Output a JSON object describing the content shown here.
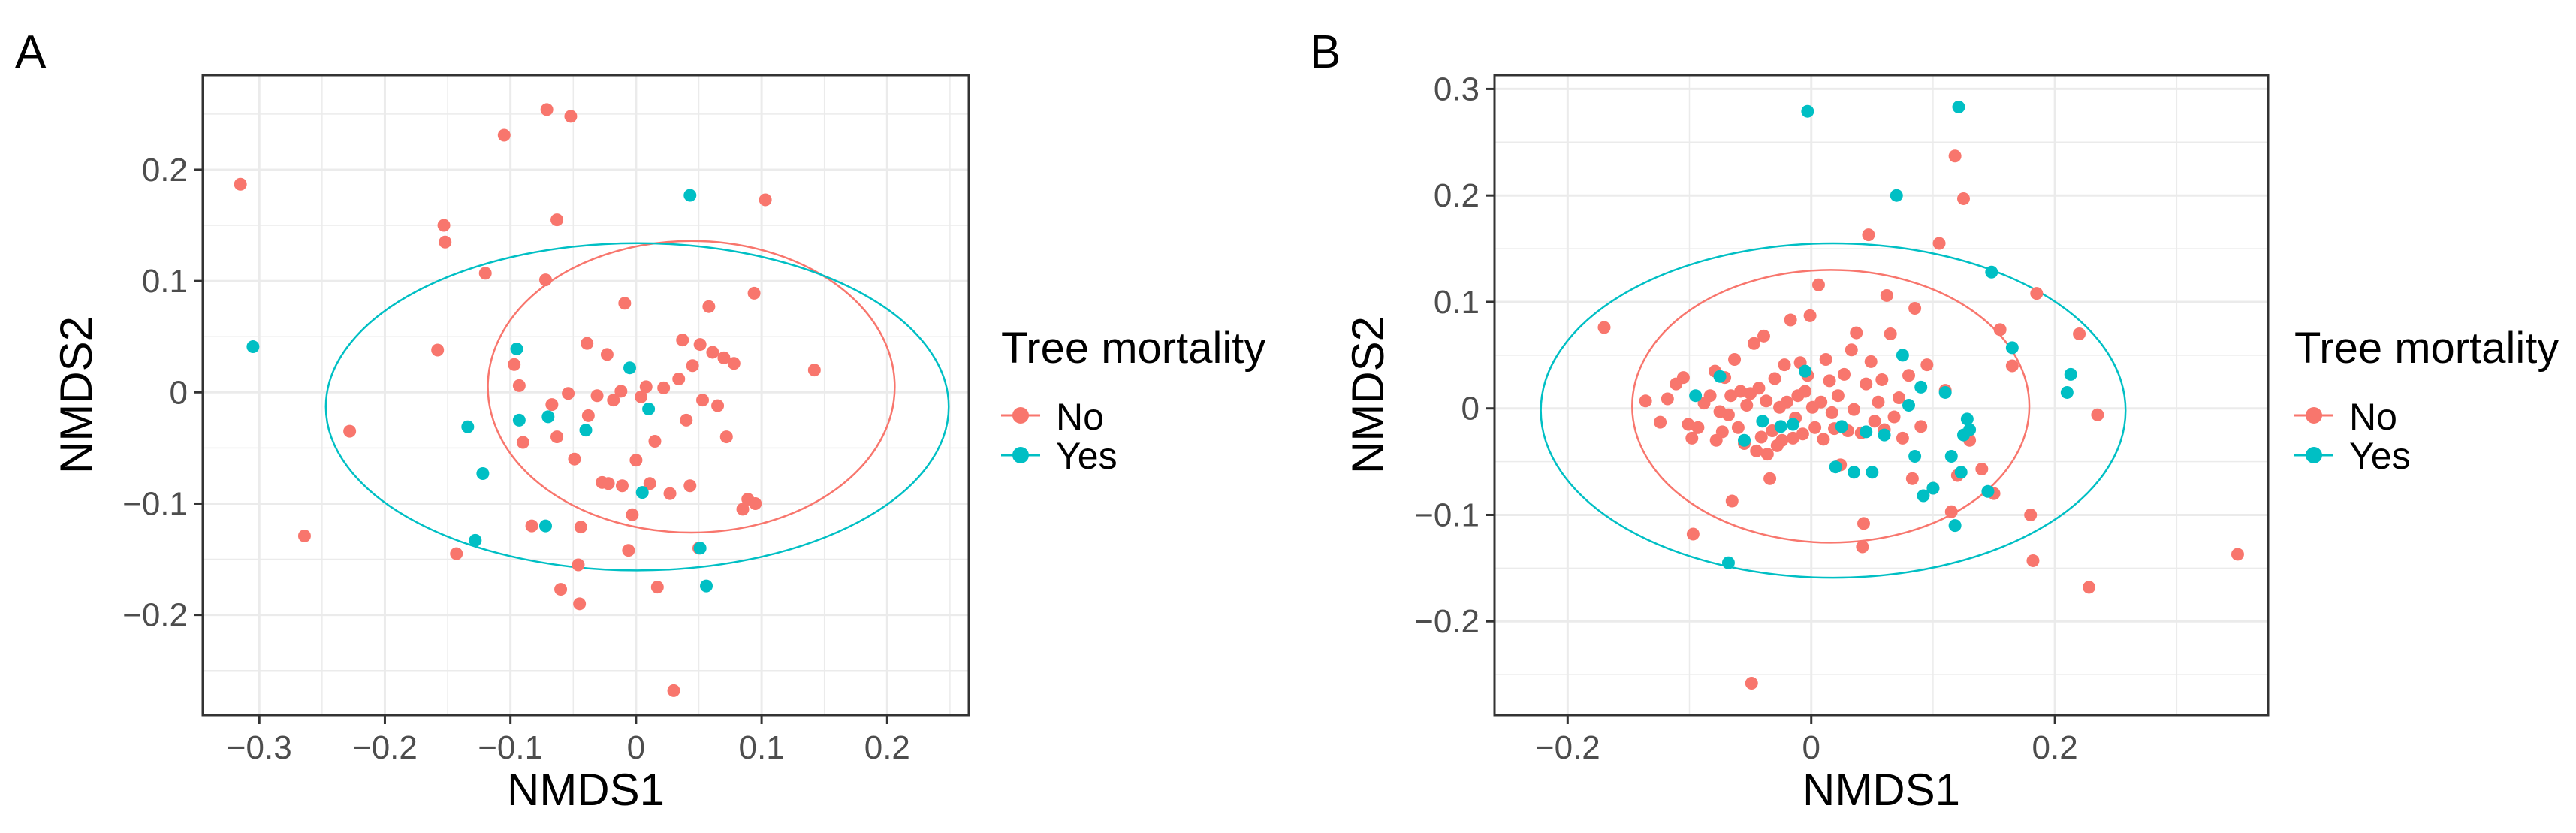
{
  "colors": {
    "no": "#F8766D",
    "yes": "#00BFC4",
    "grid": "#ebebeb",
    "axis": "#4d4d4d",
    "text": "#000000"
  },
  "chart_data": [
    {
      "panel_label": "A",
      "type": "scatter",
      "xlabel": "NMDS1",
      "ylabel": "NMDS2",
      "xlim": [
        -0.345,
        0.265
      ],
      "ylim": [
        -0.29,
        0.285
      ],
      "x_ticks": [
        -0.3,
        -0.2,
        -0.1,
        0,
        0.1,
        0.2
      ],
      "x_tick_labels": [
        "−0.3",
        "−0.2",
        "−0.1",
        "0",
        "0.1",
        "0.2"
      ],
      "y_ticks": [
        -0.2,
        -0.1,
        0,
        0.1,
        0.2
      ],
      "y_tick_labels": [
        "−0.2",
        "−0.1",
        "0",
        "0.1",
        "0.2"
      ],
      "legend": {
        "title": "Tree mortality",
        "entries": [
          "No",
          "Yes"
        ],
        "position": "right"
      },
      "series": [
        {
          "name": "No",
          "points": [
            [
              -0.315,
              0.187
            ],
            [
              -0.264,
              -0.129
            ],
            [
              -0.228,
              -0.035
            ],
            [
              -0.158,
              0.038
            ],
            [
              -0.153,
              0.15
            ],
            [
              -0.152,
              0.135
            ],
            [
              -0.143,
              -0.145
            ],
            [
              -0.12,
              0.107
            ],
            [
              -0.105,
              0.231
            ],
            [
              -0.097,
              0.025
            ],
            [
              -0.093,
              0.006
            ],
            [
              -0.09,
              -0.045
            ],
            [
              -0.083,
              -0.12
            ],
            [
              -0.072,
              0.101
            ],
            [
              -0.071,
              0.254
            ],
            [
              -0.067,
              -0.011
            ],
            [
              -0.063,
              0.155
            ],
            [
              -0.063,
              -0.04
            ],
            [
              -0.06,
              -0.177
            ],
            [
              -0.054,
              -0.001
            ],
            [
              -0.052,
              0.248
            ],
            [
              -0.049,
              -0.06
            ],
            [
              -0.046,
              -0.155
            ],
            [
              -0.045,
              -0.19
            ],
            [
              -0.044,
              -0.121
            ],
            [
              -0.039,
              0.044
            ],
            [
              -0.038,
              -0.021
            ],
            [
              -0.031,
              -0.003
            ],
            [
              -0.027,
              -0.081
            ],
            [
              -0.023,
              0.034
            ],
            [
              -0.018,
              -0.007
            ],
            [
              -0.012,
              0.001
            ],
            [
              -0.011,
              -0.084
            ],
            [
              -0.009,
              0.08
            ],
            [
              -0.006,
              -0.142
            ],
            [
              -0.003,
              -0.11
            ],
            [
              0.0,
              -0.061
            ],
            [
              0.004,
              -0.004
            ],
            [
              0.008,
              0.005
            ],
            [
              0.011,
              -0.082
            ],
            [
              0.015,
              -0.044
            ],
            [
              0.017,
              -0.175
            ],
            [
              0.022,
              0.004
            ],
            [
              0.027,
              -0.091
            ],
            [
              0.03,
              -0.268
            ],
            [
              0.034,
              0.012
            ],
            [
              0.037,
              0.047
            ],
            [
              0.04,
              -0.025
            ],
            [
              0.043,
              -0.084
            ],
            [
              0.045,
              0.024
            ],
            [
              0.051,
              0.043
            ],
            [
              0.053,
              -0.007
            ],
            [
              0.058,
              0.077
            ],
            [
              0.061,
              0.036
            ],
            [
              0.065,
              -0.012
            ],
            [
              0.07,
              0.031
            ],
            [
              0.072,
              -0.04
            ],
            [
              0.078,
              0.026
            ],
            [
              0.085,
              -0.105
            ],
            [
              0.089,
              -0.096
            ],
            [
              0.094,
              0.089
            ],
            [
              0.095,
              -0.1
            ],
            [
              0.103,
              0.173
            ],
            [
              0.142,
              0.02
            ],
            [
              0.05,
              -0.14
            ],
            [
              -0.022,
              -0.082
            ]
          ]
        },
        {
          "name": "Yes",
          "points": [
            [
              -0.305,
              0.041
            ],
            [
              -0.134,
              -0.031
            ],
            [
              -0.128,
              -0.133
            ],
            [
              -0.122,
              -0.073
            ],
            [
              -0.095,
              0.039
            ],
            [
              -0.093,
              -0.025
            ],
            [
              -0.072,
              -0.12
            ],
            [
              -0.07,
              -0.022
            ],
            [
              -0.04,
              -0.034
            ],
            [
              -0.005,
              0.022
            ],
            [
              0.005,
              -0.09
            ],
            [
              0.01,
              -0.015
            ],
            [
              0.043,
              0.177
            ],
            [
              0.051,
              -0.14
            ],
            [
              0.056,
              -0.174
            ]
          ]
        }
      ],
      "ellipses": [
        {
          "name": "No",
          "center": [
            0.044,
            0.005
          ],
          "semi_axes": [
            0.162,
            0.131
          ],
          "angle_deg": 0
        },
        {
          "name": "Yes",
          "center": [
            0.001,
            -0.013
          ],
          "semi_axes": [
            0.248,
            0.147
          ],
          "angle_deg": 0
        }
      ]
    },
    {
      "panel_label": "B",
      "type": "scatter",
      "xlabel": "NMDS1",
      "ylabel": "NMDS2",
      "xlim": [
        -0.26,
        0.375
      ],
      "ylim": [
        -0.288,
        0.313
      ],
      "x_ticks": [
        -0.2,
        0,
        0.2
      ],
      "x_tick_labels": [
        "−0.2",
        "0",
        "0.2"
      ],
      "y_ticks": [
        -0.2,
        -0.1,
        0,
        0.1,
        0.2,
        0.3
      ],
      "y_tick_labels": [
        "−0.2",
        "−0.1",
        "0",
        "0.1",
        "0.2",
        "0.3"
      ],
      "legend": {
        "title": "Tree mortality",
        "entries": [
          "No",
          "Yes"
        ],
        "position": "right"
      },
      "series": [
        {
          "name": "No",
          "points": [
            [
              -0.17,
              0.076
            ],
            [
              -0.136,
              0.007
            ],
            [
              -0.124,
              -0.013
            ],
            [
              -0.118,
              0.009
            ],
            [
              -0.111,
              0.023
            ],
            [
              -0.105,
              0.029
            ],
            [
              -0.101,
              -0.015
            ],
            [
              -0.098,
              -0.028
            ],
            [
              -0.097,
              -0.118
            ],
            [
              -0.093,
              -0.018
            ],
            [
              -0.088,
              0.005
            ],
            [
              -0.083,
              0.012
            ],
            [
              -0.079,
              0.035
            ],
            [
              -0.078,
              -0.03
            ],
            [
              -0.075,
              -0.003
            ],
            [
              -0.073,
              -0.022
            ],
            [
              -0.071,
              0.029
            ],
            [
              -0.068,
              -0.006
            ],
            [
              -0.066,
              0.012
            ],
            [
              -0.065,
              -0.087
            ],
            [
              -0.063,
              0.046
            ],
            [
              -0.06,
              -0.018
            ],
            [
              -0.058,
              0.016
            ],
            [
              -0.055,
              -0.033
            ],
            [
              -0.053,
              0.003
            ],
            [
              -0.05,
              0.014
            ],
            [
              -0.049,
              -0.258
            ],
            [
              -0.047,
              0.061
            ],
            [
              -0.045,
              -0.04
            ],
            [
              -0.043,
              0.019
            ],
            [
              -0.041,
              -0.027
            ],
            [
              -0.039,
              0.068
            ],
            [
              -0.037,
              0.007
            ],
            [
              -0.036,
              -0.043
            ],
            [
              -0.034,
              -0.066
            ],
            [
              -0.032,
              -0.021
            ],
            [
              -0.03,
              0.028
            ],
            [
              -0.028,
              -0.035
            ],
            [
              -0.026,
              0.001
            ],
            [
              -0.024,
              -0.03
            ],
            [
              -0.022,
              0.041
            ],
            [
              -0.02,
              0.006
            ],
            [
              -0.017,
              0.083
            ],
            [
              -0.015,
              -0.028
            ],
            [
              -0.013,
              -0.009
            ],
            [
              -0.011,
              0.012
            ],
            [
              -0.009,
              0.043
            ],
            [
              -0.007,
              -0.024
            ],
            [
              -0.005,
              0.016
            ],
            [
              -0.003,
              0.031
            ],
            [
              -0.001,
              0.087
            ],
            [
              0.001,
              0.001
            ],
            [
              0.003,
              -0.018
            ],
            [
              0.006,
              0.116
            ],
            [
              0.008,
              0.006
            ],
            [
              0.01,
              -0.029
            ],
            [
              0.012,
              0.046
            ],
            [
              0.015,
              0.026
            ],
            [
              0.017,
              -0.004
            ],
            [
              0.019,
              -0.019
            ],
            [
              0.022,
              0.012
            ],
            [
              0.024,
              -0.053
            ],
            [
              0.027,
              0.032
            ],
            [
              0.03,
              -0.021
            ],
            [
              0.033,
              0.055
            ],
            [
              0.035,
              -0.001
            ],
            [
              0.037,
              0.071
            ],
            [
              0.041,
              -0.023
            ],
            [
              0.042,
              -0.13
            ],
            [
              0.043,
              -0.108
            ],
            [
              0.045,
              0.023
            ],
            [
              0.047,
              0.163
            ],
            [
              0.049,
              0.044
            ],
            [
              0.052,
              -0.012
            ],
            [
              0.055,
              0.006
            ],
            [
              0.058,
              0.027
            ],
            [
              0.06,
              -0.02
            ],
            [
              0.062,
              0.106
            ],
            [
              0.065,
              0.07
            ],
            [
              0.068,
              -0.008
            ],
            [
              0.072,
              0.01
            ],
            [
              0.075,
              -0.028
            ],
            [
              0.08,
              0.031
            ],
            [
              0.083,
              -0.066
            ],
            [
              0.085,
              0.094
            ],
            [
              0.09,
              -0.017
            ],
            [
              0.095,
              0.041
            ],
            [
              0.1,
              -0.075
            ],
            [
              0.105,
              0.155
            ],
            [
              0.11,
              0.017
            ],
            [
              0.115,
              -0.097
            ],
            [
              0.118,
              0.237
            ],
            [
              0.12,
              -0.063
            ],
            [
              0.125,
              0.197
            ],
            [
              0.13,
              -0.03
            ],
            [
              0.14,
              -0.057
            ],
            [
              0.15,
              -0.08
            ],
            [
              0.155,
              0.074
            ],
            [
              0.165,
              0.04
            ],
            [
              0.18,
              -0.1
            ],
            [
              0.182,
              -0.143
            ],
            [
              0.185,
              0.108
            ],
            [
              0.22,
              0.07
            ],
            [
              0.228,
              -0.168
            ],
            [
              0.235,
              -0.006
            ],
            [
              0.35,
              -0.137
            ]
          ]
        },
        {
          "name": "Yes",
          "points": [
            [
              -0.095,
              0.012
            ],
            [
              -0.075,
              0.03
            ],
            [
              -0.068,
              -0.145
            ],
            [
              -0.055,
              -0.03
            ],
            [
              -0.04,
              -0.012
            ],
            [
              -0.025,
              -0.017
            ],
            [
              -0.015,
              -0.015
            ],
            [
              -0.005,
              0.035
            ],
            [
              -0.003,
              0.279
            ],
            [
              0.02,
              -0.055
            ],
            [
              0.025,
              -0.017
            ],
            [
              0.035,
              -0.06
            ],
            [
              0.045,
              -0.022
            ],
            [
              0.05,
              -0.06
            ],
            [
              0.06,
              -0.025
            ],
            [
              0.07,
              0.2
            ],
            [
              0.075,
              0.05
            ],
            [
              0.08,
              0.003
            ],
            [
              0.085,
              -0.045
            ],
            [
              0.09,
              0.02
            ],
            [
              0.092,
              -0.082
            ],
            [
              0.1,
              -0.075
            ],
            [
              0.11,
              0.015
            ],
            [
              0.115,
              -0.045
            ],
            [
              0.118,
              -0.11
            ],
            [
              0.121,
              0.283
            ],
            [
              0.123,
              -0.06
            ],
            [
              0.125,
              -0.025
            ],
            [
              0.128,
              -0.01
            ],
            [
              0.13,
              -0.02
            ],
            [
              0.148,
              0.128
            ],
            [
              0.165,
              0.057
            ],
            [
              0.21,
              0.015
            ],
            [
              0.213,
              0.032
            ],
            [
              0.145,
              -0.078
            ]
          ]
        }
      ],
      "ellipses": [
        {
          "name": "No",
          "center": [
            0.016,
            0.002
          ],
          "semi_axes": [
            0.163,
            0.128
          ],
          "angle_deg": 0
        },
        {
          "name": "Yes",
          "center": [
            0.018,
            -0.002
          ],
          "semi_axes": [
            0.24,
            0.157
          ],
          "angle_deg": 0
        }
      ]
    }
  ]
}
